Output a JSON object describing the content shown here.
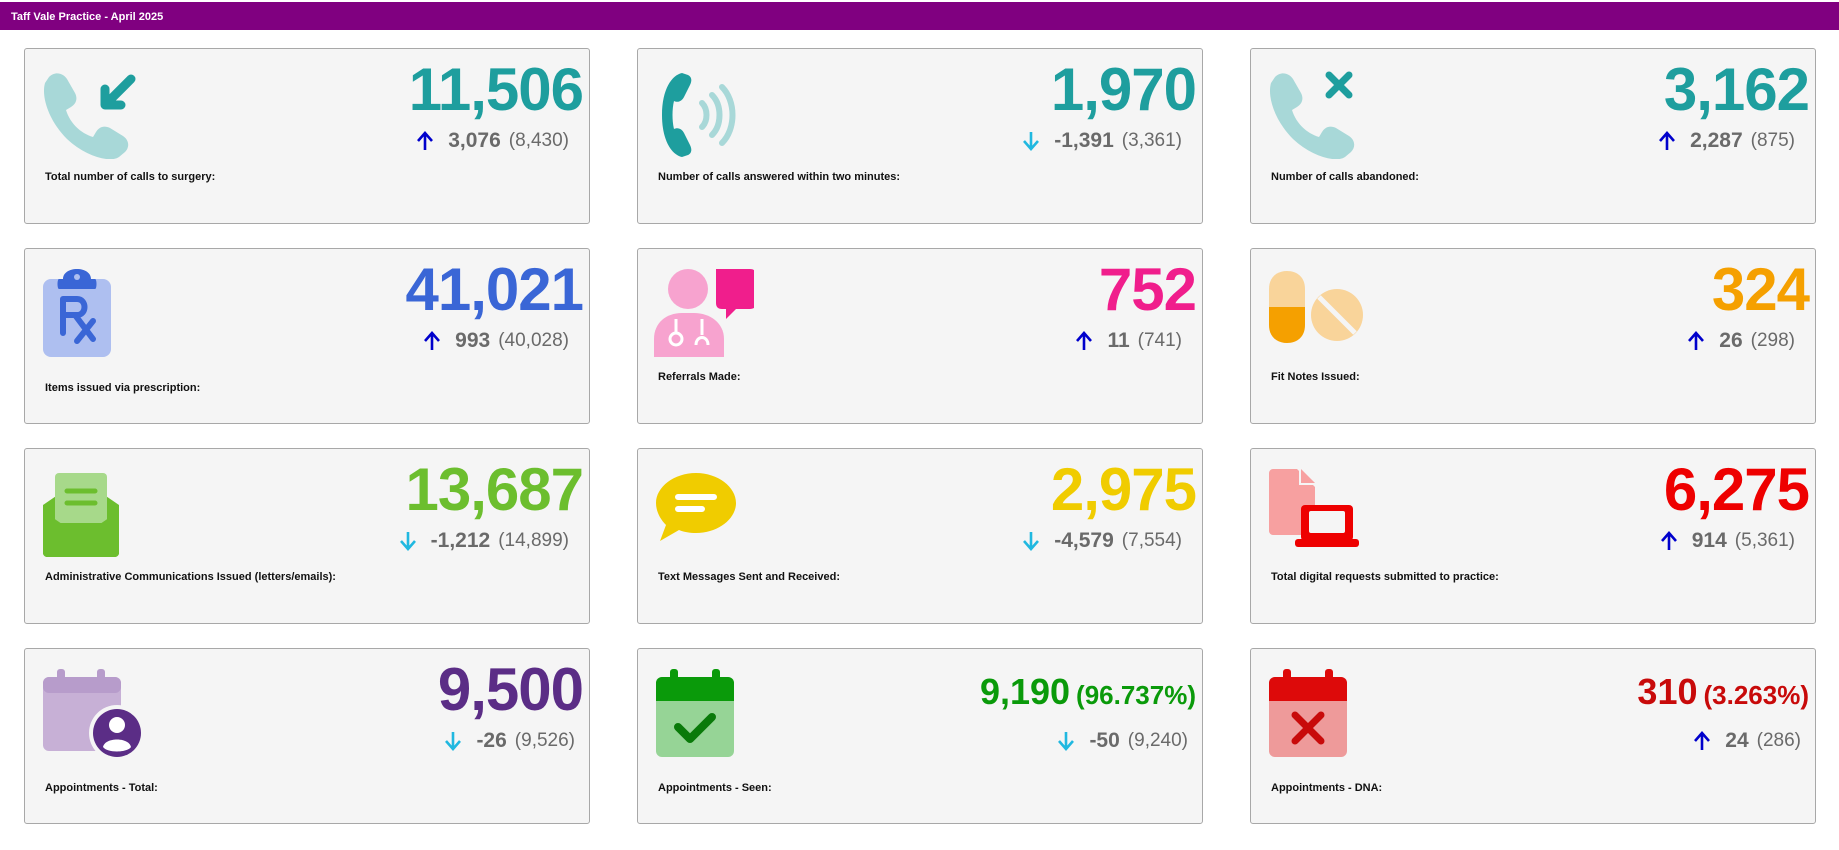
{
  "header": {
    "title": "Taff Vale Practice - April 2025"
  },
  "colors": {
    "header_bg": "#800080",
    "teal": "#1e9e9e",
    "blue": "#3a66d6",
    "pink": "#f01e8c",
    "orange": "#f5a000",
    "green": "#6cbe2e",
    "yellow": "#f0cc00",
    "red": "#ee0000",
    "purple": "#5b2d86",
    "seen_green": "#0a9a0a",
    "dna_red": "#c80a0a",
    "arrow_up": "#0000cc",
    "arrow_down": "#20b8e0"
  },
  "cards": [
    {
      "label": "Total number of calls to surgery:",
      "value": "11,506",
      "direction": "up",
      "delta": "3,076",
      "previous": "(8,430)",
      "icon": "phone-incoming-icon"
    },
    {
      "label": "Number of calls answered within two minutes:",
      "value": "1,970",
      "direction": "down",
      "delta": "-1,391",
      "previous": "(3,361)",
      "icon": "phone-ringing-icon"
    },
    {
      "label": "Number of calls abandoned:",
      "value": "3,162",
      "direction": "up",
      "delta": "2,287",
      "previous": "(875)",
      "icon": "phone-missed-icon"
    },
    {
      "label": "Items issued via prescription:",
      "value": "41,021",
      "direction": "up",
      "delta": "993",
      "previous": "(40,028)",
      "icon": "prescription-clipboard-icon"
    },
    {
      "label": "Referrals Made:",
      "value": "752",
      "direction": "up",
      "delta": "11",
      "previous": "(741)",
      "icon": "doctor-speech-icon"
    },
    {
      "label": "Fit Notes Issued:",
      "value": "324",
      "direction": "up",
      "delta": "26",
      "previous": "(298)",
      "icon": "pills-icon"
    },
    {
      "label": "Administrative Communications Issued (letters/emails):",
      "value": "13,687",
      "direction": "down",
      "delta": "-1,212",
      "previous": "(14,899)",
      "icon": "open-envelope-icon"
    },
    {
      "label": "Text Messages Sent and Received:",
      "value": "2,975",
      "direction": "down",
      "delta": "-4,579",
      "previous": "(7,554)",
      "icon": "chat-bubble-icon"
    },
    {
      "label": "Total digital requests submitted to practice:",
      "value": "6,275",
      "direction": "up",
      "delta": "914",
      "previous": "(5,361)",
      "icon": "laptop-document-icon"
    },
    {
      "label": "Appointments - Total:",
      "value": "9,500",
      "direction": "down",
      "delta": "-26",
      "previous": "(9,526)",
      "icon": "calendar-user-icon"
    },
    {
      "label": "Appointments - Seen:",
      "value": "9,190",
      "percent": "(96.737%)",
      "direction": "down",
      "delta": "-50",
      "previous": "(9,240)",
      "icon": "calendar-check-icon"
    },
    {
      "label": "Appointments - DNA:",
      "value": "310",
      "percent": "(3.263%)",
      "direction": "up",
      "delta": "24",
      "previous": "(286)",
      "icon": "calendar-x-icon"
    }
  ]
}
